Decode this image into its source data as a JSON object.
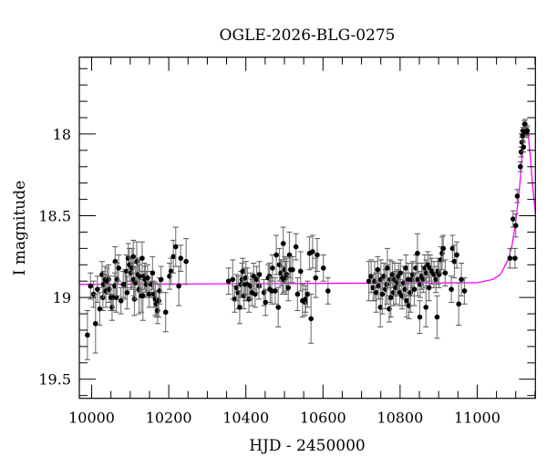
{
  "chart_data": {
    "type": "scatter",
    "title": "OGLE-2026-BLG-0275",
    "xlabel": "HJD - 2450000",
    "ylabel": "I magnitude",
    "xlim": [
      9968,
      11151
    ],
    "ylim": [
      19.617,
      17.53
    ],
    "y_inverted": true,
    "grid": false,
    "x_ticks": [
      10000,
      10200,
      10400,
      10600,
      10800,
      11000
    ],
    "x_tick_labels": [
      "10000",
      "10200",
      "10400",
      "10600",
      "10800",
      "11000"
    ],
    "x_minor_step": 50,
    "y_ticks": [
      18,
      18.5,
      19,
      19.5
    ],
    "y_tick_labels": [
      "18",
      "18.5",
      "19",
      "19.5"
    ],
    "y_minor_step": 0.1,
    "colors": {
      "points": "#000000",
      "errorbars": "#808080",
      "model": "#ff00ff"
    },
    "points_format": [
      "HJD",
      "I",
      "err"
    ],
    "points": [
      [
        9989,
        19.23,
        0.15
      ],
      [
        9997,
        18.93,
        0.08
      ],
      [
        10005,
        18.98,
        0.08
      ],
      [
        10010,
        19.16,
        0.18
      ],
      [
        10015,
        18.95,
        0.08
      ],
      [
        10021,
        19.07,
        0.1
      ],
      [
        10027,
        18.86,
        0.08
      ],
      [
        10029,
        19.0,
        0.08
      ],
      [
        10031,
        18.92,
        0.08
      ],
      [
        10035,
        18.89,
        0.08
      ],
      [
        10037,
        18.96,
        0.1
      ],
      [
        10040,
        18.9,
        0.08
      ],
      [
        10044,
        18.89,
        0.09
      ],
      [
        10046,
        18.95,
        0.08
      ],
      [
        10050,
        19.0,
        0.08
      ],
      [
        10053,
        19.06,
        0.08
      ],
      [
        10056,
        19.0,
        0.08
      ],
      [
        10060,
        18.93,
        0.08
      ],
      [
        10061,
        18.78,
        0.09
      ],
      [
        10064,
        19.0,
        0.09
      ],
      [
        10066,
        18.89,
        0.1
      ],
      [
        10070,
        18.82,
        0.08
      ],
      [
        10076,
        19.02,
        0.08
      ],
      [
        10082,
        18.92,
        0.08
      ],
      [
        10087,
        18.92,
        0.09
      ],
      [
        10090,
        18.84,
        0.1
      ],
      [
        10092,
        18.97,
        0.1
      ],
      [
        10095,
        18.76,
        0.09
      ],
      [
        10098,
        18.8,
        0.1
      ],
      [
        10102,
        18.85,
        0.1
      ],
      [
        10105,
        18.82,
        0.12
      ],
      [
        10108,
        18.75,
        0.1
      ],
      [
        10109,
        18.89,
        0.1
      ],
      [
        10111,
        19.01,
        0.1
      ],
      [
        10114,
        18.91,
        0.1
      ],
      [
        10117,
        18.78,
        0.12
      ],
      [
        10120,
        18.86,
        0.1
      ],
      [
        10123,
        18.95,
        0.15
      ],
      [
        10125,
        18.87,
        0.1
      ],
      [
        10129,
        18.99,
        0.1
      ],
      [
        10131,
        18.76,
        0.1
      ],
      [
        10133,
        18.99,
        0.15
      ],
      [
        10137,
        18.87,
        0.08
      ],
      [
        10139,
        18.89,
        0.08
      ],
      [
        10142,
        18.92,
        0.08
      ],
      [
        10145,
        18.88,
        0.08
      ],
      [
        10149,
        18.98,
        0.08
      ],
      [
        10155,
        18.92,
        0.08
      ],
      [
        10158,
        18.85,
        0.1
      ],
      [
        10161,
        18.98,
        0.08
      ],
      [
        10165,
        19.01,
        0.1
      ],
      [
        10168,
        19.04,
        0.08
      ],
      [
        10171,
        19.08,
        0.08
      ],
      [
        10174,
        19.02,
        0.1
      ],
      [
        10176,
        18.96,
        0.08
      ],
      [
        10180,
        18.89,
        0.08
      ],
      [
        10192,
        19.09,
        0.12
      ],
      [
        10202,
        18.87,
        0.08
      ],
      [
        10206,
        18.84,
        0.08
      ],
      [
        10212,
        18.75,
        0.1
      ],
      [
        10218,
        18.69,
        0.12
      ],
      [
        10226,
        18.93,
        0.12
      ],
      [
        10231,
        18.76,
        0.08
      ],
      [
        10245,
        18.78,
        0.14
      ],
      [
        10355,
        18.9,
        0.08
      ],
      [
        10366,
        18.89,
        0.12
      ],
      [
        10371,
        19.01,
        0.08
      ],
      [
        10376,
        18.94,
        0.08
      ],
      [
        10380,
        18.97,
        0.1
      ],
      [
        10384,
        19.06,
        0.1
      ],
      [
        10387,
        18.92,
        0.08
      ],
      [
        10390,
        18.89,
        0.1
      ],
      [
        10392,
        18.84,
        0.08
      ],
      [
        10395,
        18.99,
        0.08
      ],
      [
        10398,
        18.92,
        0.1
      ],
      [
        10400,
        18.88,
        0.1
      ],
      [
        10404,
        18.92,
        0.1
      ],
      [
        10408,
        19.01,
        0.08
      ],
      [
        10412,
        18.93,
        0.08
      ],
      [
        10416,
        18.97,
        0.08
      ],
      [
        10420,
        18.87,
        0.08
      ],
      [
        10424,
        18.98,
        0.08
      ],
      [
        10428,
        18.89,
        0.08
      ],
      [
        10434,
        18.93,
        0.08
      ],
      [
        10435,
        18.86,
        0.08
      ],
      [
        10447,
        18.97,
        0.08
      ],
      [
        10451,
        19.03,
        0.08
      ],
      [
        10458,
        18.88,
        0.08
      ],
      [
        10461,
        18.87,
        0.08
      ],
      [
        10463,
        18.95,
        0.08
      ],
      [
        10467,
        18.96,
        0.08
      ],
      [
        10469,
        18.82,
        0.08
      ],
      [
        10476,
        18.96,
        0.08
      ],
      [
        10479,
        18.74,
        0.12
      ],
      [
        10484,
        19.06,
        0.12
      ],
      [
        10487,
        18.8,
        0.1
      ],
      [
        10491,
        18.85,
        0.08
      ],
      [
        10495,
        18.88,
        0.1
      ],
      [
        10497,
        18.67,
        0.1
      ],
      [
        10498,
        18.89,
        0.08
      ],
      [
        10501,
        18.83,
        0.08
      ],
      [
        10504,
        18.88,
        0.1
      ],
      [
        10506,
        18.86,
        0.1
      ],
      [
        10510,
        18.94,
        0.08
      ],
      [
        10513,
        18.74,
        0.14
      ],
      [
        10516,
        18.83,
        0.08
      ],
      [
        10521,
        18.83,
        0.08
      ],
      [
        10530,
        18.69,
        0.08
      ],
      [
        10534,
        18.98,
        0.1
      ],
      [
        10542,
        18.84,
        0.12
      ],
      [
        10547,
        19.02,
        0.1
      ],
      [
        10554,
        19.03,
        0.08
      ],
      [
        10555,
        19.01,
        0.08
      ],
      [
        10560,
        18.98,
        0.08
      ],
      [
        10565,
        18.73,
        0.1
      ],
      [
        10569,
        19.13,
        0.15
      ],
      [
        10573,
        18.72,
        0.1
      ],
      [
        10581,
        18.88,
        0.12
      ],
      [
        10585,
        18.74,
        0.1
      ],
      [
        10601,
        18.82,
        0.08
      ],
      [
        10613,
        18.96,
        0.08
      ],
      [
        10719,
        18.9,
        0.12
      ],
      [
        10725,
        18.87,
        0.1
      ],
      [
        10730,
        18.94,
        0.08
      ],
      [
        10734,
        18.9,
        0.12
      ],
      [
        10738,
        18.97,
        0.12
      ],
      [
        10742,
        18.83,
        0.08
      ],
      [
        10744,
        18.93,
        0.08
      ],
      [
        10749,
        19.06,
        0.12
      ],
      [
        10750,
        18.89,
        0.12
      ],
      [
        10754,
        18.98,
        0.12
      ],
      [
        10758,
        18.87,
        0.08
      ],
      [
        10762,
        18.95,
        0.12
      ],
      [
        10766,
        18.92,
        0.12
      ],
      [
        10767,
        18.82,
        0.12
      ],
      [
        10772,
        19.07,
        0.08
      ],
      [
        10774,
        18.89,
        0.12
      ],
      [
        10776,
        19.0,
        0.12
      ],
      [
        10780,
        18.86,
        0.08
      ],
      [
        10783,
        18.97,
        0.08
      ],
      [
        10786,
        18.89,
        0.1
      ],
      [
        10789,
        18.94,
        0.1
      ],
      [
        10793,
        18.91,
        0.08
      ],
      [
        10796,
        18.87,
        0.08
      ],
      [
        10799,
        18.97,
        0.08
      ],
      [
        10801,
        18.85,
        0.08
      ],
      [
        10805,
        18.99,
        0.08
      ],
      [
        10809,
        18.91,
        0.1
      ],
      [
        10813,
        18.95,
        0.1
      ],
      [
        10815,
        18.82,
        0.08
      ],
      [
        10817,
        19.02,
        0.1
      ],
      [
        10821,
        18.89,
        0.1
      ],
      [
        10823,
        19.05,
        0.08
      ],
      [
        10827,
        18.97,
        0.12
      ],
      [
        10830,
        18.89,
        0.1
      ],
      [
        10833,
        18.86,
        0.08
      ],
      [
        10837,
        18.95,
        0.1
      ],
      [
        10841,
        18.82,
        0.08
      ],
      [
        10845,
        18.73,
        0.12
      ],
      [
        10846,
        18.89,
        0.1
      ],
      [
        10851,
        19.12,
        0.1
      ],
      [
        10852,
        18.92,
        0.08
      ],
      [
        10856,
        18.87,
        0.08
      ],
      [
        10860,
        18.89,
        0.08
      ],
      [
        10864,
        18.82,
        0.08
      ],
      [
        10867,
        19.06,
        0.12
      ],
      [
        10868,
        18.85,
        0.08
      ],
      [
        10872,
        18.8,
        0.08
      ],
      [
        10875,
        18.94,
        0.08
      ],
      [
        10878,
        18.82,
        0.08
      ],
      [
        10882,
        18.84,
        0.08
      ],
      [
        10888,
        18.86,
        0.08
      ],
      [
        10893,
        18.89,
        0.08
      ],
      [
        10896,
        19.12,
        0.13
      ],
      [
        10898,
        18.84,
        0.08
      ],
      [
        10901,
        18.86,
        0.08
      ],
      [
        10906,
        18.77,
        0.08
      ],
      [
        10909,
        18.73,
        0.1
      ],
      [
        10912,
        18.7,
        0.08
      ],
      [
        10917,
        18.85,
        0.08
      ],
      [
        10933,
        18.95,
        0.08
      ],
      [
        10936,
        18.7,
        0.08
      ],
      [
        10941,
        18.78,
        0.1
      ],
      [
        10947,
        18.74,
        0.08
      ],
      [
        10952,
        19.04,
        0.13
      ],
      [
        10959,
        18.89,
        0.1
      ],
      [
        10967,
        18.96,
        0.08
      ],
      [
        11085,
        18.76,
        0.06
      ],
      [
        11093,
        18.52,
        0.05
      ],
      [
        11098,
        18.76,
        0.06
      ],
      [
        11100,
        18.56,
        0.07
      ],
      [
        11104,
        18.38,
        0.04
      ],
      [
        11112,
        18.2,
        0.03
      ],
      [
        11114,
        18.11,
        0.03
      ],
      [
        11116,
        18.05,
        0.03
      ],
      [
        11118,
        18.01,
        0.03
      ],
      [
        11119,
        17.98,
        0.02
      ],
      [
        11120,
        18.08,
        0.03
      ],
      [
        11123,
        17.94,
        0.02
      ],
      [
        11124,
        17.94,
        0.03
      ],
      [
        11128,
        17.99,
        0.03
      ],
      [
        11130,
        17.98,
        0.03
      ]
    ],
    "model_curve": [
      [
        9968,
        18.92
      ],
      [
        11000,
        18.91
      ],
      [
        11040,
        18.89
      ],
      [
        11060,
        18.86
      ],
      [
        11080,
        18.77
      ],
      [
        11090,
        18.685
      ],
      [
        11100,
        18.54
      ],
      [
        11110,
        18.32
      ],
      [
        11117,
        18.12
      ],
      [
        11122,
        18.0
      ],
      [
        11127,
        17.955
      ],
      [
        11132,
        18.0
      ],
      [
        11137,
        18.12
      ],
      [
        11144,
        18.32
      ],
      [
        11151,
        18.484
      ]
    ]
  }
}
